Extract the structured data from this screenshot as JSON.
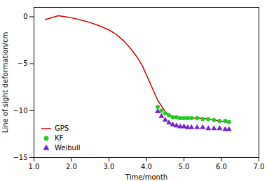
{
  "chart_data": {
    "type": "line",
    "title": "",
    "xlabel": "Time/month",
    "ylabel": "Line of sight deformation/cm",
    "xlim": [
      1,
      7
    ],
    "ylim": [
      -15,
      1
    ],
    "xticks": [
      1,
      2,
      3,
      4,
      5,
      6,
      7
    ],
    "yticks": [
      0,
      -5,
      -10,
      -15
    ],
    "grid": false,
    "legend": "lower left",
    "series": [
      {
        "name": "GPS",
        "type": "line",
        "line_style": "solid",
        "color": "#cc0000",
        "x": [
          1.3,
          1.65,
          1.85,
          2.1,
          2.4,
          2.7,
          3.0,
          3.2,
          3.4,
          3.6,
          3.75,
          3.9,
          4.0,
          4.1,
          4.2,
          4.3,
          4.4,
          4.5,
          4.6,
          4.7,
          4.8,
          4.9,
          5.0,
          5.1,
          5.2,
          5.35,
          5.5,
          5.65,
          5.8,
          5.95,
          6.1,
          6.2
        ],
        "values": [
          -0.3,
          0.1,
          0.0,
          -0.2,
          -0.5,
          -0.9,
          -1.4,
          -1.9,
          -2.6,
          -3.5,
          -4.3,
          -5.3,
          -6.2,
          -7.1,
          -8.0,
          -8.9,
          -9.5,
          -10.1,
          -10.5,
          -10.7,
          -10.8,
          -10.9,
          -10.9,
          -10.9,
          -10.8,
          -10.8,
          -10.8,
          -10.9,
          -11.0,
          -11.1,
          -11.2,
          -11.25
        ]
      },
      {
        "name": "KF",
        "type": "scatter",
        "marker": "circle",
        "color": "#22cc22",
        "x": [
          4.3,
          4.4,
          4.5,
          4.6,
          4.7,
          4.8,
          4.9,
          5.0,
          5.1,
          5.2,
          5.35,
          5.5,
          5.65,
          5.8,
          5.95,
          6.1,
          6.2
        ],
        "values": [
          -9.6,
          -10.0,
          -10.3,
          -10.5,
          -10.7,
          -10.7,
          -10.8,
          -10.8,
          -10.8,
          -10.8,
          -10.8,
          -10.9,
          -10.9,
          -11.0,
          -11.1,
          -11.1,
          -11.2
        ]
      },
      {
        "name": "Weibull",
        "type": "scatter",
        "marker": "triangle",
        "color": "#7722cc",
        "x": [
          4.3,
          4.4,
          4.5,
          4.6,
          4.7,
          4.8,
          4.9,
          5.0,
          5.1,
          5.2,
          5.35,
          5.5,
          5.65,
          5.8,
          5.95,
          6.1,
          6.2
        ],
        "values": [
          -10.1,
          -10.6,
          -11.0,
          -11.3,
          -11.5,
          -11.6,
          -11.7,
          -11.7,
          -11.8,
          -11.8,
          -11.8,
          -11.8,
          -11.9,
          -11.9,
          -11.9,
          -12.0,
          -12.0
        ]
      }
    ]
  }
}
